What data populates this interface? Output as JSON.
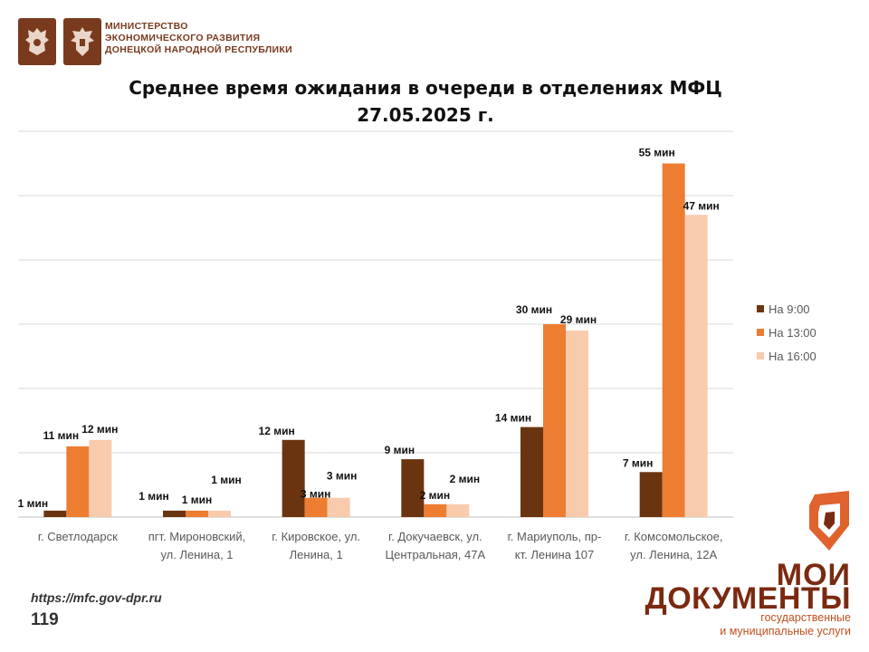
{
  "header": {
    "ministry_lines": [
      "МИНИСТЕРСТВО",
      "ЭКОНОМИЧЕСКОГО РАЗВИТИЯ",
      "ДОНЕЦКОЙ НАРОДНОЙ РЕСПУБЛИКИ"
    ]
  },
  "chart_data": {
    "type": "bar",
    "title_lines": [
      "Среднее время ожидания в очереди в отделениях МФЦ",
      "27.05.2025 г."
    ],
    "categories": [
      [
        "г. Светлодарск"
      ],
      [
        "пгт. Мироновский,",
        "ул. Ленина, 1"
      ],
      [
        "г. Кировское, ул.",
        "Ленина, 1"
      ],
      [
        "г. Докучаевск, ул.",
        "Центральная, 47А"
      ],
      [
        "г. Мариуполь, пр-",
        "кт. Ленина 107"
      ],
      [
        "г. Комсомольское,",
        "ул. Ленина, 12А"
      ]
    ],
    "series": [
      {
        "name": "На 9:00",
        "color": "#6b3410",
        "values": [
          1,
          1,
          12,
          9,
          14,
          7
        ]
      },
      {
        "name": "На 13:00",
        "color": "#ed7d31",
        "values": [
          11,
          1,
          3,
          2,
          30,
          55
        ]
      },
      {
        "name": "На 16:00",
        "color": "#f8cbad",
        "values": [
          12,
          1,
          3,
          2,
          29,
          47
        ]
      }
    ],
    "value_suffix": " мин",
    "ylim": [
      0,
      60
    ],
    "gridline_step": 10,
    "grid": true,
    "legend_position": "right"
  },
  "footer": {
    "url": "https://mfc.gov-dpr.ru",
    "page_number": "119"
  },
  "logo": {
    "word1": "МОИ",
    "word2": "ДОКУМЕНТЫ",
    "sub1": "государственные",
    "sub2": "и муниципальные услуги",
    "colors": {
      "dark": "#7a2a10",
      "orange": "#e0622c"
    }
  }
}
